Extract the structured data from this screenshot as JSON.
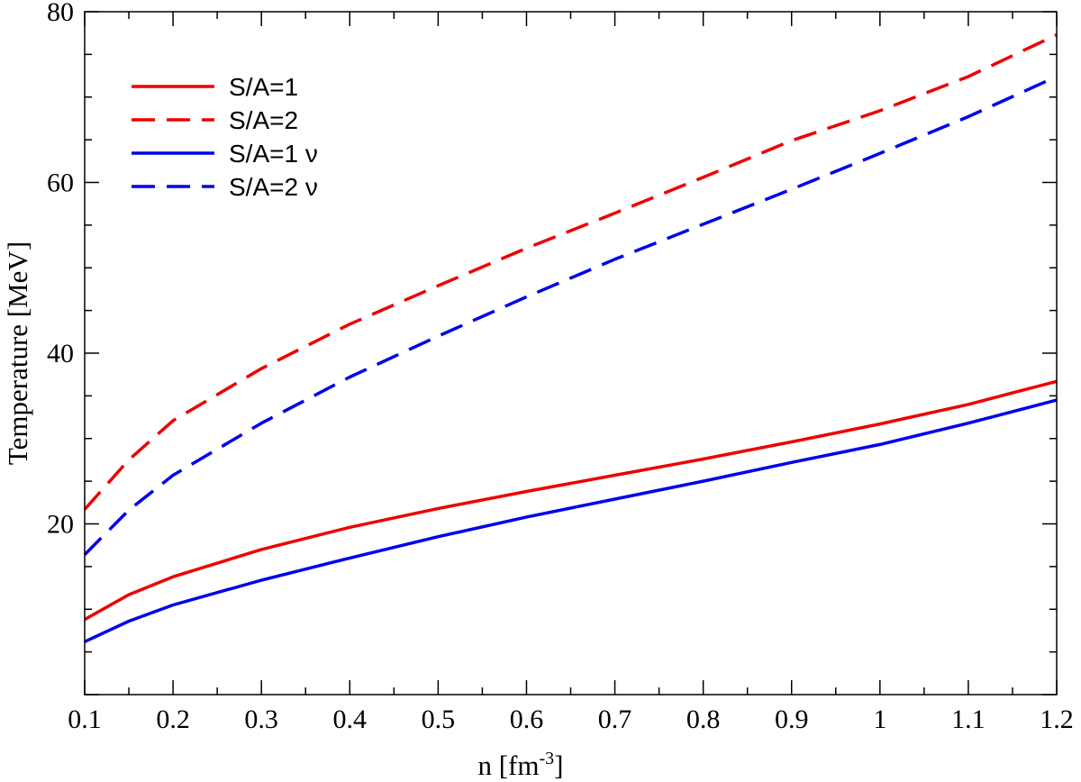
{
  "chart_data": {
    "type": "line",
    "xlabel_base": "n [fm",
    "xlabel_sup": "-3",
    "xlabel_end": "]",
    "ylabel": "Temperature [MeV]",
    "xlim": [
      0.1,
      1.2
    ],
    "ylim": [
      0,
      80
    ],
    "xticks": [
      0.1,
      0.2,
      0.3,
      0.4,
      0.5,
      0.6,
      0.7,
      0.8,
      0.9,
      1,
      1.1,
      1.2
    ],
    "xtick_labels": [
      "0.1",
      "0.2",
      "0.3",
      "0.4",
      "0.5",
      "0.6",
      "0.7",
      "0.8",
      "0.9",
      "1",
      "1.1",
      "1.2"
    ],
    "yticks": [
      20,
      40,
      60,
      80
    ],
    "ytick_labels": [
      "20",
      "40",
      "60",
      "80"
    ],
    "grid": false,
    "legend_position": "top-left",
    "series": [
      {
        "name": "S/A=1",
        "color": "#ee0000",
        "style": "solid",
        "x": [
          0.1,
          0.15,
          0.2,
          0.3,
          0.4,
          0.5,
          0.6,
          0.7,
          0.8,
          0.9,
          1.0,
          1.1,
          1.2
        ],
        "y": [
          8.8,
          11.7,
          13.8,
          17.0,
          19.6,
          21.8,
          23.8,
          25.7,
          27.6,
          29.6,
          31.7,
          34.0,
          36.7
        ]
      },
      {
        "name": "S/A=2",
        "color": "#ee0000",
        "style": "dashed",
        "x": [
          0.1,
          0.15,
          0.2,
          0.3,
          0.4,
          0.5,
          0.6,
          0.7,
          0.8,
          0.9,
          1.0,
          1.1,
          1.2
        ],
        "y": [
          21.7,
          27.5,
          32.1,
          38.2,
          43.4,
          47.9,
          52.3,
          56.4,
          60.6,
          64.9,
          68.4,
          72.4,
          77.3
        ]
      },
      {
        "name": "S/A=1 ν",
        "color": "#0000ee",
        "style": "solid",
        "x": [
          0.1,
          0.15,
          0.2,
          0.3,
          0.4,
          0.5,
          0.6,
          0.7,
          0.8,
          0.9,
          1.0,
          1.1,
          1.2
        ],
        "y": [
          6.2,
          8.6,
          10.5,
          13.4,
          16.0,
          18.5,
          20.8,
          22.9,
          25.0,
          27.2,
          29.3,
          31.8,
          34.5
        ]
      },
      {
        "name": "S/A=2 ν",
        "color": "#0000ee",
        "style": "dashed",
        "x": [
          0.1,
          0.15,
          0.2,
          0.3,
          0.4,
          0.5,
          0.6,
          0.7,
          0.8,
          0.9,
          1.0,
          1.1,
          1.2
        ],
        "y": [
          16.4,
          21.6,
          25.7,
          31.8,
          37.2,
          42.0,
          46.6,
          51.0,
          55.1,
          59.2,
          63.4,
          67.7,
          72.4
        ]
      }
    ]
  }
}
